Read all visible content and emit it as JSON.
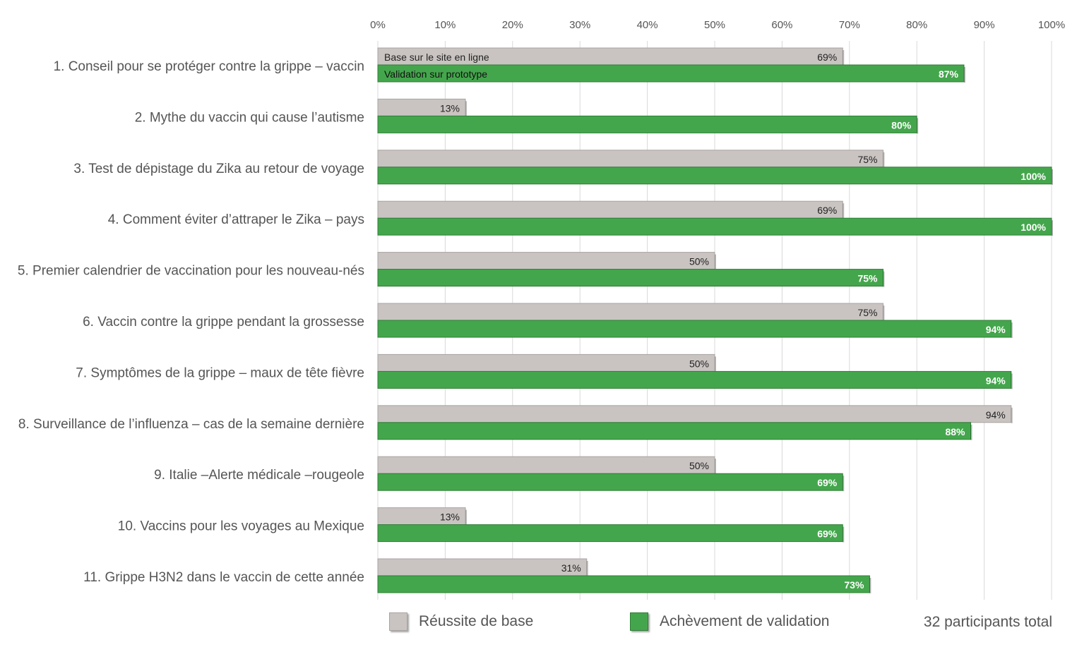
{
  "chart_data": {
    "type": "bar",
    "orientation": "horizontal",
    "categories": [
      "1. Conseil pour se protéger contre la grippe – vaccin",
      "2. Mythe du vaccin qui cause l’autisme",
      "3. Test de dépistage du Zika au retour de voyage",
      "4. Comment éviter d’attraper le Zika – pays",
      "5. Premier calendrier de vaccination pour les nouveau-nés",
      "6. Vaccin contre la grippe pendant la grossesse",
      "7. Symptômes de la grippe – maux de tête fièvre",
      "8. Surveillance de l’influenza – cas de la semaine dernière",
      "9. Italie –Alerte médicale –rougeole",
      "10. Vaccins pour les voyages au Mexique",
      "11. Grippe H3N2 dans le vaccin de cette année"
    ],
    "series": [
      {
        "name": "Réussite de base",
        "in_bar_label": "Base sur le site en ligne",
        "color": "#c9c4c2",
        "values": [
          69,
          13,
          75,
          69,
          50,
          75,
          50,
          94,
          50,
          13,
          31
        ],
        "value_labels": [
          "69%",
          "13%",
          "75%",
          "69%",
          "50%",
          "75%",
          "50%",
          "94%",
          "50%",
          "13%",
          "31%"
        ]
      },
      {
        "name": "Achèvement de validation",
        "in_bar_label": "Validation sur prototype",
        "color": "#44a64c",
        "values": [
          87,
          80,
          100,
          100,
          75,
          94,
          94,
          88,
          69,
          69,
          73
        ],
        "value_labels": [
          "87%",
          "80%",
          "100%",
          "100%",
          "75%",
          "94%",
          "94%",
          "88%",
          "69%",
          "69%",
          "73%"
        ]
      }
    ],
    "x_ticks": [
      "0%",
      "10%",
      "20%",
      "30%",
      "40%",
      "50%",
      "60%",
      "70%",
      "80%",
      "90%",
      "100%"
    ],
    "xlim": [
      0,
      100
    ],
    "grid": true,
    "axis_position": "top",
    "legend_position": "bottom",
    "note": "32 participants total"
  }
}
